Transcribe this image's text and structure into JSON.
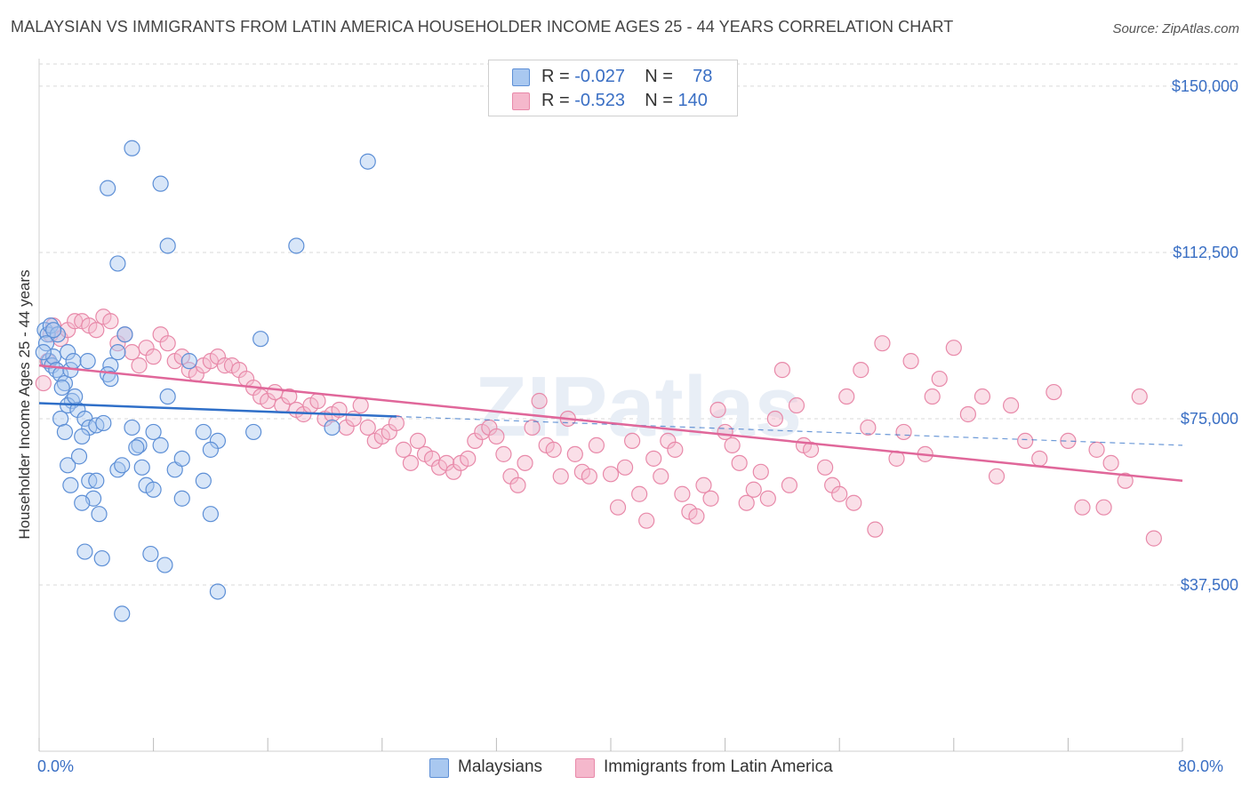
{
  "title": "MALAYSIAN VS IMMIGRANTS FROM LATIN AMERICA HOUSEHOLDER INCOME AGES 25 - 44 YEARS CORRELATION CHART",
  "source": "Source: ZipAtlas.com",
  "watermark": "ZIPatlas",
  "legend": {
    "rows": [
      {
        "r_label": "R = ",
        "r_value": "-0.027",
        "n_label": "N = ",
        "n_value": "78"
      },
      {
        "r_label": "R = ",
        "r_value": "-0.523",
        "n_label": "N = ",
        "n_value": "140"
      }
    ]
  },
  "colors": {
    "malaysians_fill": "#a9c8f0",
    "malaysians_stroke": "#5d8fd6",
    "malaysians_line": "#2f6fc8",
    "latin_fill": "#f5b8cc",
    "latin_stroke": "#e889a9",
    "latin_line": "#e0679a",
    "axis_text": "#3a6fc4",
    "grid": "#d9d9d9"
  },
  "chart_data": {
    "type": "scatter",
    "title": "MALAYSIAN VS IMMIGRANTS FROM LATIN AMERICA HOUSEHOLDER INCOME AGES 25 - 44 YEARS CORRELATION CHART",
    "xlabel": "",
    "ylabel": "Householder Income Ages 25 - 44 years",
    "xlim": [
      0,
      80
    ],
    "ylim": [
      0,
      155000
    ],
    "x_tick_labels": [
      "0.0%",
      "80.0%"
    ],
    "y_ticks": [
      37500,
      75000,
      112500,
      150000
    ],
    "y_tick_labels": [
      "$37,500",
      "$75,000",
      "$112,500",
      "$150,000"
    ],
    "grid": true,
    "legend_position": "top-center",
    "series": [
      {
        "name": "Malaysians",
        "trend": {
          "x": [
            0,
            25
          ],
          "y": [
            78500,
            75500
          ],
          "extended_to_x": 80,
          "extended_y": 69000
        },
        "points": [
          [
            0.4,
            95000
          ],
          [
            0.6,
            94000
          ],
          [
            0.8,
            96000
          ],
          [
            0.5,
            92000
          ],
          [
            0.7,
            88000
          ],
          [
            0.9,
            87000
          ],
          [
            1.0,
            89000
          ],
          [
            1.2,
            86000
          ],
          [
            1.5,
            85000
          ],
          [
            1.3,
            94000
          ],
          [
            1.8,
            83000
          ],
          [
            2.0,
            90000
          ],
          [
            2.2,
            86000
          ],
          [
            2.4,
            88000
          ],
          [
            2.3,
            79000
          ],
          [
            2.0,
            78000
          ],
          [
            1.5,
            75000
          ],
          [
            1.8,
            72000
          ],
          [
            2.7,
            77000
          ],
          [
            3.2,
            75000
          ],
          [
            3.5,
            73000
          ],
          [
            4.0,
            73500
          ],
          [
            4.5,
            74000
          ],
          [
            2.5,
            80000
          ],
          [
            3.4,
            88000
          ],
          [
            5.0,
            87000
          ],
          [
            4.8,
            85000
          ],
          [
            5.5,
            90000
          ],
          [
            5.0,
            84000
          ],
          [
            6.0,
            94000
          ],
          [
            6.5,
            73000
          ],
          [
            7.0,
            69000
          ],
          [
            8.0,
            72000
          ],
          [
            8.5,
            69000
          ],
          [
            9.0,
            80000
          ],
          [
            10.5,
            88000
          ],
          [
            11.5,
            72000
          ],
          [
            12.5,
            70000
          ],
          [
            12.0,
            68000
          ],
          [
            15.5,
            93000
          ],
          [
            15.0,
            72000
          ],
          [
            20.5,
            73000
          ],
          [
            2.0,
            64500
          ],
          [
            2.8,
            66500
          ],
          [
            3.5,
            61000
          ],
          [
            4.0,
            61000
          ],
          [
            3.8,
            57000
          ],
          [
            3.0,
            56000
          ],
          [
            4.2,
            53500
          ],
          [
            5.5,
            63500
          ],
          [
            5.8,
            64500
          ],
          [
            6.8,
            68500
          ],
          [
            7.2,
            64000
          ],
          [
            7.5,
            60000
          ],
          [
            8.0,
            59000
          ],
          [
            9.5,
            63500
          ],
          [
            10.0,
            66000
          ],
          [
            10.0,
            57000
          ],
          [
            11.5,
            61000
          ],
          [
            12.0,
            53500
          ],
          [
            3.2,
            45000
          ],
          [
            4.4,
            43500
          ],
          [
            7.8,
            44500
          ],
          [
            8.8,
            42000
          ],
          [
            12.5,
            36000
          ],
          [
            5.8,
            31000
          ],
          [
            4.8,
            127000
          ],
          [
            6.5,
            136000
          ],
          [
            8.5,
            128000
          ],
          [
            9.0,
            114000
          ],
          [
            5.5,
            110000
          ],
          [
            18.0,
            114000
          ],
          [
            23.0,
            133000
          ],
          [
            0.3,
            90000
          ],
          [
            1.0,
            95000
          ],
          [
            1.6,
            82000
          ],
          [
            3.0,
            71000
          ],
          [
            2.2,
            60000
          ]
        ]
      },
      {
        "name": "Immigrants from Latin America",
        "trend": {
          "x": [
            0,
            80
          ],
          "y": [
            87000,
            61000
          ]
        },
        "points": [
          [
            0.3,
            83000
          ],
          [
            0.6,
            88000
          ],
          [
            0.8,
            94000
          ],
          [
            1.0,
            96000
          ],
          [
            1.5,
            93000
          ],
          [
            2.0,
            95000
          ],
          [
            2.5,
            97000
          ],
          [
            3.0,
            97000
          ],
          [
            3.5,
            96000
          ],
          [
            4.0,
            95000
          ],
          [
            4.5,
            98000
          ],
          [
            5.0,
            97000
          ],
          [
            5.5,
            92000
          ],
          [
            6.0,
            94000
          ],
          [
            6.5,
            90000
          ],
          [
            7.0,
            87000
          ],
          [
            7.5,
            91000
          ],
          [
            8.0,
            89000
          ],
          [
            8.5,
            94000
          ],
          [
            9.0,
            92000
          ],
          [
            9.5,
            88000
          ],
          [
            10.0,
            89000
          ],
          [
            10.5,
            86000
          ],
          [
            11.0,
            85000
          ],
          [
            11.5,
            87000
          ],
          [
            12.0,
            88000
          ],
          [
            12.5,
            89000
          ],
          [
            13.0,
            87000
          ],
          [
            13.5,
            87000
          ],
          [
            14.0,
            86000
          ],
          [
            14.5,
            84000
          ],
          [
            15.0,
            82000
          ],
          [
            15.5,
            80000
          ],
          [
            16.0,
            79000
          ],
          [
            16.5,
            81000
          ],
          [
            17.0,
            78000
          ],
          [
            17.5,
            80000
          ],
          [
            18.0,
            77000
          ],
          [
            18.5,
            76000
          ],
          [
            19.0,
            78000
          ],
          [
            19.5,
            79000
          ],
          [
            20.0,
            75000
          ],
          [
            20.5,
            76000
          ],
          [
            21.0,
            77000
          ],
          [
            21.5,
            73000
          ],
          [
            22.0,
            75000
          ],
          [
            22.5,
            78000
          ],
          [
            23.0,
            73000
          ],
          [
            23.5,
            70000
          ],
          [
            24.0,
            71000
          ],
          [
            24.5,
            72000
          ],
          [
            25.0,
            74000
          ],
          [
            25.5,
            68000
          ],
          [
            26.0,
            65000
          ],
          [
            26.5,
            70000
          ],
          [
            27.0,
            67000
          ],
          [
            27.5,
            66000
          ],
          [
            28.0,
            64000
          ],
          [
            28.5,
            65000
          ],
          [
            29.0,
            63000
          ],
          [
            29.5,
            65000
          ],
          [
            30.0,
            66000
          ],
          [
            30.5,
            70000
          ],
          [
            31.0,
            72000
          ],
          [
            31.5,
            73000
          ],
          [
            32.0,
            71000
          ],
          [
            32.5,
            67000
          ],
          [
            33.0,
            62000
          ],
          [
            33.5,
            60000
          ],
          [
            34.0,
            65000
          ],
          [
            34.5,
            73000
          ],
          [
            35.0,
            79000
          ],
          [
            35.5,
            69000
          ],
          [
            36.0,
            68000
          ],
          [
            36.5,
            62000
          ],
          [
            37.0,
            75000
          ],
          [
            37.5,
            67000
          ],
          [
            38.0,
            63000
          ],
          [
            38.5,
            62000
          ],
          [
            39.0,
            69000
          ],
          [
            40.0,
            62500
          ],
          [
            40.5,
            55000
          ],
          [
            41.0,
            64000
          ],
          [
            41.5,
            70000
          ],
          [
            42.0,
            58000
          ],
          [
            42.5,
            52000
          ],
          [
            43.0,
            66000
          ],
          [
            43.5,
            62000
          ],
          [
            44.0,
            70000
          ],
          [
            44.5,
            68000
          ],
          [
            45.0,
            58000
          ],
          [
            45.5,
            54000
          ],
          [
            46.0,
            53000
          ],
          [
            46.5,
            60000
          ],
          [
            47.0,
            57000
          ],
          [
            47.5,
            77000
          ],
          [
            48.0,
            72000
          ],
          [
            48.5,
            69000
          ],
          [
            49.0,
            65000
          ],
          [
            49.5,
            56000
          ],
          [
            50.0,
            59000
          ],
          [
            50.5,
            63000
          ],
          [
            51.0,
            57000
          ],
          [
            51.5,
            75000
          ],
          [
            52.0,
            86000
          ],
          [
            52.5,
            60000
          ],
          [
            53.0,
            78000
          ],
          [
            53.5,
            69000
          ],
          [
            54.0,
            68000
          ],
          [
            55.0,
            64000
          ],
          [
            55.5,
            60000
          ],
          [
            56.0,
            58000
          ],
          [
            56.5,
            80000
          ],
          [
            57.0,
            56000
          ],
          [
            57.5,
            86000
          ],
          [
            58.0,
            73000
          ],
          [
            58.5,
            50000
          ],
          [
            59.0,
            92000
          ],
          [
            60.0,
            66000
          ],
          [
            60.5,
            72000
          ],
          [
            61.0,
            88000
          ],
          [
            62.0,
            67000
          ],
          [
            62.5,
            80000
          ],
          [
            63.0,
            84000
          ],
          [
            64.0,
            91000
          ],
          [
            65.0,
            76000
          ],
          [
            66.0,
            80000
          ],
          [
            67.0,
            62000
          ],
          [
            68.0,
            78000
          ],
          [
            69.0,
            70000
          ],
          [
            70.0,
            66000
          ],
          [
            71.0,
            81000
          ],
          [
            72.0,
            70000
          ],
          [
            73.0,
            55000
          ],
          [
            74.0,
            68000
          ],
          [
            75.0,
            65000
          ],
          [
            76.0,
            61000
          ],
          [
            77.0,
            80000
          ],
          [
            78.0,
            48000
          ],
          [
            74.5,
            55000
          ]
        ]
      }
    ]
  },
  "bottom_legend": [
    {
      "label": "Malaysians"
    },
    {
      "label": "Immigrants from Latin America"
    }
  ]
}
